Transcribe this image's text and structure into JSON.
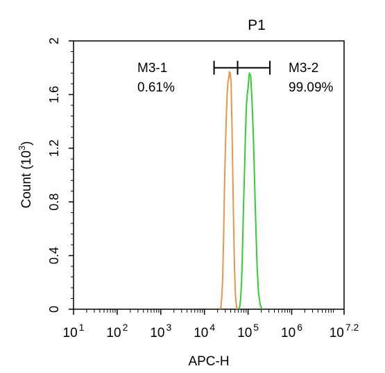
{
  "chart_data": {
    "type": "line",
    "title": "P1",
    "title_color": "#22cc22",
    "xlabel": "APC-H",
    "ylabel": "Count  (10",
    "ylabel_exp": "3",
    "ylabel_close": ")",
    "x_scale": "log",
    "xlim": [
      1,
      7.2
    ],
    "ylim": [
      0,
      2
    ],
    "x_ticks": [
      {
        "base": "10",
        "exp": "1",
        "value": 1
      },
      {
        "base": "10",
        "exp": "2",
        "value": 2
      },
      {
        "base": "10",
        "exp": "3",
        "value": 3
      },
      {
        "base": "10",
        "exp": "4",
        "value": 4
      },
      {
        "base": "10",
        "exp": "5",
        "value": 5
      },
      {
        "base": "10",
        "exp": "6",
        "value": 6
      },
      {
        "base": "10",
        "exp": "7.2",
        "value": 7.2
      }
    ],
    "y_ticks": [
      "0",
      "0.4",
      "0.8",
      "1.2",
      "1.6",
      "2"
    ],
    "grid": false,
    "series": [
      {
        "color": "#e8944a",
        "points": [
          [
            4.35,
            0
          ],
          [
            4.38,
            0.02
          ],
          [
            4.4,
            0.1
          ],
          [
            4.42,
            0.25
          ],
          [
            4.44,
            0.55
          ],
          [
            4.46,
            0.9
          ],
          [
            4.48,
            1.2
          ],
          [
            4.5,
            1.42
          ],
          [
            4.52,
            1.6
          ],
          [
            4.54,
            1.7
          ],
          [
            4.56,
            1.72
          ],
          [
            4.57,
            1.77
          ],
          [
            4.59,
            1.76
          ],
          [
            4.61,
            1.7
          ],
          [
            4.63,
            1.4
          ],
          [
            4.65,
            1.0
          ],
          [
            4.67,
            0.6
          ],
          [
            4.69,
            0.3
          ],
          [
            4.71,
            0.1
          ],
          [
            4.74,
            0
          ]
        ]
      },
      {
        "color": "#33cc33",
        "points": [
          [
            4.78,
            0
          ],
          [
            4.81,
            0.02
          ],
          [
            4.83,
            0.08
          ],
          [
            4.85,
            0.2
          ],
          [
            4.87,
            0.4
          ],
          [
            4.89,
            0.7
          ],
          [
            4.92,
            1.05
          ],
          [
            4.94,
            1.3
          ],
          [
            4.96,
            1.5
          ],
          [
            4.98,
            1.6
          ],
          [
            5.0,
            1.65
          ],
          [
            5.03,
            1.76
          ],
          [
            5.06,
            1.74
          ],
          [
            5.09,
            1.55
          ],
          [
            5.12,
            1.3
          ],
          [
            5.15,
            0.95
          ],
          [
            5.18,
            0.6
          ],
          [
            5.21,
            0.3
          ],
          [
            5.24,
            0.12
          ],
          [
            5.28,
            0.03
          ],
          [
            5.32,
            0
          ]
        ]
      }
    ],
    "gate": {
      "x1": 4.22,
      "xmid": 4.76,
      "x2": 5.5,
      "y": 1.8
    },
    "annotations": [
      {
        "label": "M3-1",
        "value": "0.61%"
      },
      {
        "label": "M3-2",
        "value": "99.09%"
      }
    ]
  }
}
